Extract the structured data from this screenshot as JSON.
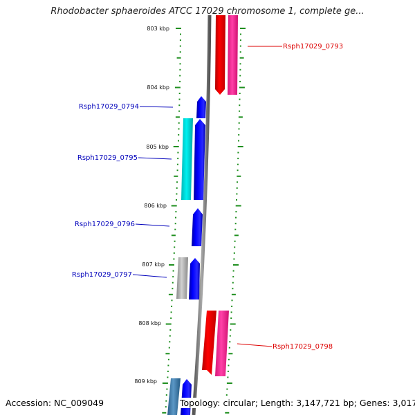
{
  "title": "Rhodobacter sphaeroides ATCC 17029 chromosome 1, complete ge...",
  "ruler": [
    "803 kbp",
    "804 kbp",
    "805 kbp",
    "806 kbp",
    "807 kbp",
    "808 kbp",
    "809 kbp"
  ],
  "genes": [
    {
      "label": "Rsph17029_0793",
      "strand": "reverse",
      "color": "#dd0000"
    },
    {
      "label": "Rsph17029_0794",
      "strand": "forward",
      "color": "#0000bb"
    },
    {
      "label": "Rsph17029_0795",
      "strand": "forward",
      "color": "#0000bb"
    },
    {
      "label": "Rsph17029_0796",
      "strand": "forward",
      "color": "#0000bb"
    },
    {
      "label": "Rsph17029_0797",
      "strand": "forward",
      "color": "#0000bb"
    },
    {
      "label": "Rsph17029_0798",
      "strand": "reverse",
      "color": "#dd0000"
    }
  ],
  "colors": {
    "forward_gene": "#0000ff",
    "reverse_gene": "#ff0000",
    "reverse_cds": "#ff2d9a",
    "forward_cds_0795": "#00e5e5",
    "forward_cds_0797": "#b0b0b0",
    "tick": "#1f8f1f",
    "backbone": "#808080"
  },
  "footer": {
    "accession": "Accession: NC_009049",
    "topology": "Topology: circular; Length: 3,147,721 bp; Genes: 3,017"
  }
}
